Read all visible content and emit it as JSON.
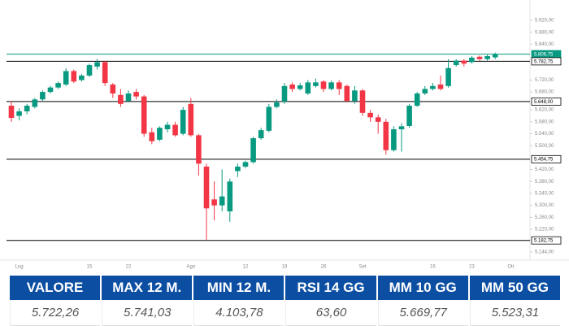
{
  "chart_data": {
    "type": "candlestick",
    "categories": [
      null,
      "Lug",
      null,
      null,
      null,
      null,
      null,
      null,
      null,
      null,
      "15",
      null,
      null,
      null,
      null,
      "22",
      null,
      null,
      null,
      null,
      null,
      null,
      null,
      "Ago",
      null,
      null,
      null,
      null,
      null,
      null,
      "12",
      null,
      null,
      null,
      null,
      "19",
      null,
      null,
      null,
      null,
      "26",
      null,
      null,
      null,
      null,
      "Set",
      null,
      null,
      null,
      null,
      null,
      null,
      null,
      null,
      "16",
      null,
      null,
      null,
      null,
      "23",
      null,
      null,
      null,
      null,
      "Ott"
    ],
    "open": [
      5634,
      5600,
      5615,
      5630,
      5655,
      5680,
      5695,
      5705,
      5750,
      5720,
      5735,
      5765,
      5780,
      5705,
      5670,
      5650,
      5680,
      5665,
      5545,
      5520,
      5555,
      5570,
      5540,
      5640,
      5535,
      5430,
      5320,
      5300,
      5280,
      5415,
      5430,
      5445,
      5525,
      5550,
      5630,
      5648,
      5705,
      5690,
      5675,
      5700,
      5715,
      5690,
      5712,
      5700,
      5650,
      5685,
      5610,
      5595,
      5580,
      5485,
      5555,
      5566,
      5634,
      5675,
      5690,
      5705,
      5700,
      5770,
      5785,
      5780,
      5798,
      5790,
      5796,
      null,
      null
    ],
    "high": [
      5650,
      5625,
      5640,
      5660,
      5685,
      5700,
      5715,
      5760,
      5755,
      5740,
      5775,
      5790,
      5785,
      5710,
      5690,
      5685,
      5690,
      5670,
      5560,
      5565,
      5580,
      5580,
      5630,
      5660,
      5540,
      5440,
      5380,
      5420,
      5390,
      5440,
      5450,
      5530,
      5560,
      5640,
      5655,
      5710,
      5712,
      5710,
      5720,
      5725,
      5720,
      5718,
      5720,
      5705,
      5700,
      5690,
      5620,
      5605,
      5590,
      5565,
      5575,
      5640,
      5680,
      5700,
      5710,
      5735,
      5790,
      5790,
      5790,
      5800,
      5802,
      5805,
      5812,
      null,
      null
    ],
    "low": [
      5580,
      5585,
      5605,
      5625,
      5650,
      5675,
      5690,
      5700,
      5710,
      5715,
      5730,
      5755,
      5700,
      5660,
      5630,
      5645,
      5655,
      5530,
      5505,
      5515,
      5545,
      5530,
      5535,
      5530,
      5400,
      5185,
      5250,
      5280,
      5245,
      5395,
      5425,
      5440,
      5520,
      5545,
      5625,
      5640,
      5680,
      5685,
      5670,
      5695,
      5680,
      5685,
      5670,
      5645,
      5640,
      5600,
      5580,
      5540,
      5470,
      5480,
      5480,
      5560,
      5630,
      5670,
      5685,
      5685,
      5695,
      5765,
      5765,
      5775,
      5785,
      5785,
      5790,
      null,
      null
    ],
    "close": [
      5593,
      5615,
      5634,
      5655,
      5680,
      5695,
      5710,
      5750,
      5715,
      5735,
      5770,
      5780,
      5710,
      5675,
      5640,
      5675,
      5665,
      5540,
      5515,
      5560,
      5570,
      5535,
      5620,
      5535,
      5440,
      5290,
      5300,
      5330,
      5380,
      5430,
      5445,
      5525,
      5552,
      5630,
      5645,
      5700,
      5690,
      5702,
      5712,
      5712,
      5690,
      5712,
      5690,
      5650,
      5685,
      5610,
      5595,
      5580,
      5485,
      5555,
      5565,
      5634,
      5675,
      5690,
      5700,
      5690,
      5760,
      5785,
      5775,
      5795,
      5790,
      5800,
      5807,
      null,
      null
    ],
    "up_color": "#089981",
    "down_color": "#f23645",
    "ylim": [
      5122,
      5950
    ],
    "yticks": [
      {
        "value": 5920,
        "label": "5.920,00"
      },
      {
        "value": 5880,
        "label": "5.880,00"
      },
      {
        "value": 5840,
        "label": "5.840,00"
      },
      {
        "value": 5720,
        "label": "5.720,00"
      },
      {
        "value": 5680,
        "label": "5.680,00"
      },
      {
        "value": 5620,
        "label": "5.620,00"
      },
      {
        "value": 5580,
        "label": "5.580,00"
      },
      {
        "value": 5540,
        "label": "5.540,00"
      },
      {
        "value": 5500,
        "label": "5.500,00"
      },
      {
        "value": 5420,
        "label": "5.420,00"
      },
      {
        "value": 5380,
        "label": "5.380,00"
      },
      {
        "value": 5340,
        "label": "5.340,00"
      },
      {
        "value": 5300,
        "label": "5.300,00"
      },
      {
        "value": 5260,
        "label": "5.260,00"
      },
      {
        "value": 5220,
        "label": "5.220,00"
      },
      {
        "value": 5144,
        "label": "5.144,00"
      }
    ],
    "levels": [
      {
        "value": 5806.75,
        "label": "5.806,75",
        "color": "#089981"
      },
      {
        "value": 5782.75,
        "label": "5.782,75",
        "color": "#000000"
      },
      {
        "value": 5648,
        "label": "5.648,00",
        "color": "#000000"
      },
      {
        "value": 5454.75,
        "label": "5.454,75",
        "color": "#000000"
      },
      {
        "value": 5182.75,
        "label": "5.182,75",
        "color": "#000000"
      }
    ]
  },
  "table": {
    "header": [
      "VALORE",
      "MAX 12 M.",
      "MIN 12 M.",
      "RSI 14 GG",
      "MM 10 GG",
      "MM 50 GG"
    ],
    "rows": [
      [
        "5.722,26",
        "5.741,03",
        "4.103,78",
        "63,60",
        "5.669,77",
        "5.523,31"
      ]
    ]
  }
}
